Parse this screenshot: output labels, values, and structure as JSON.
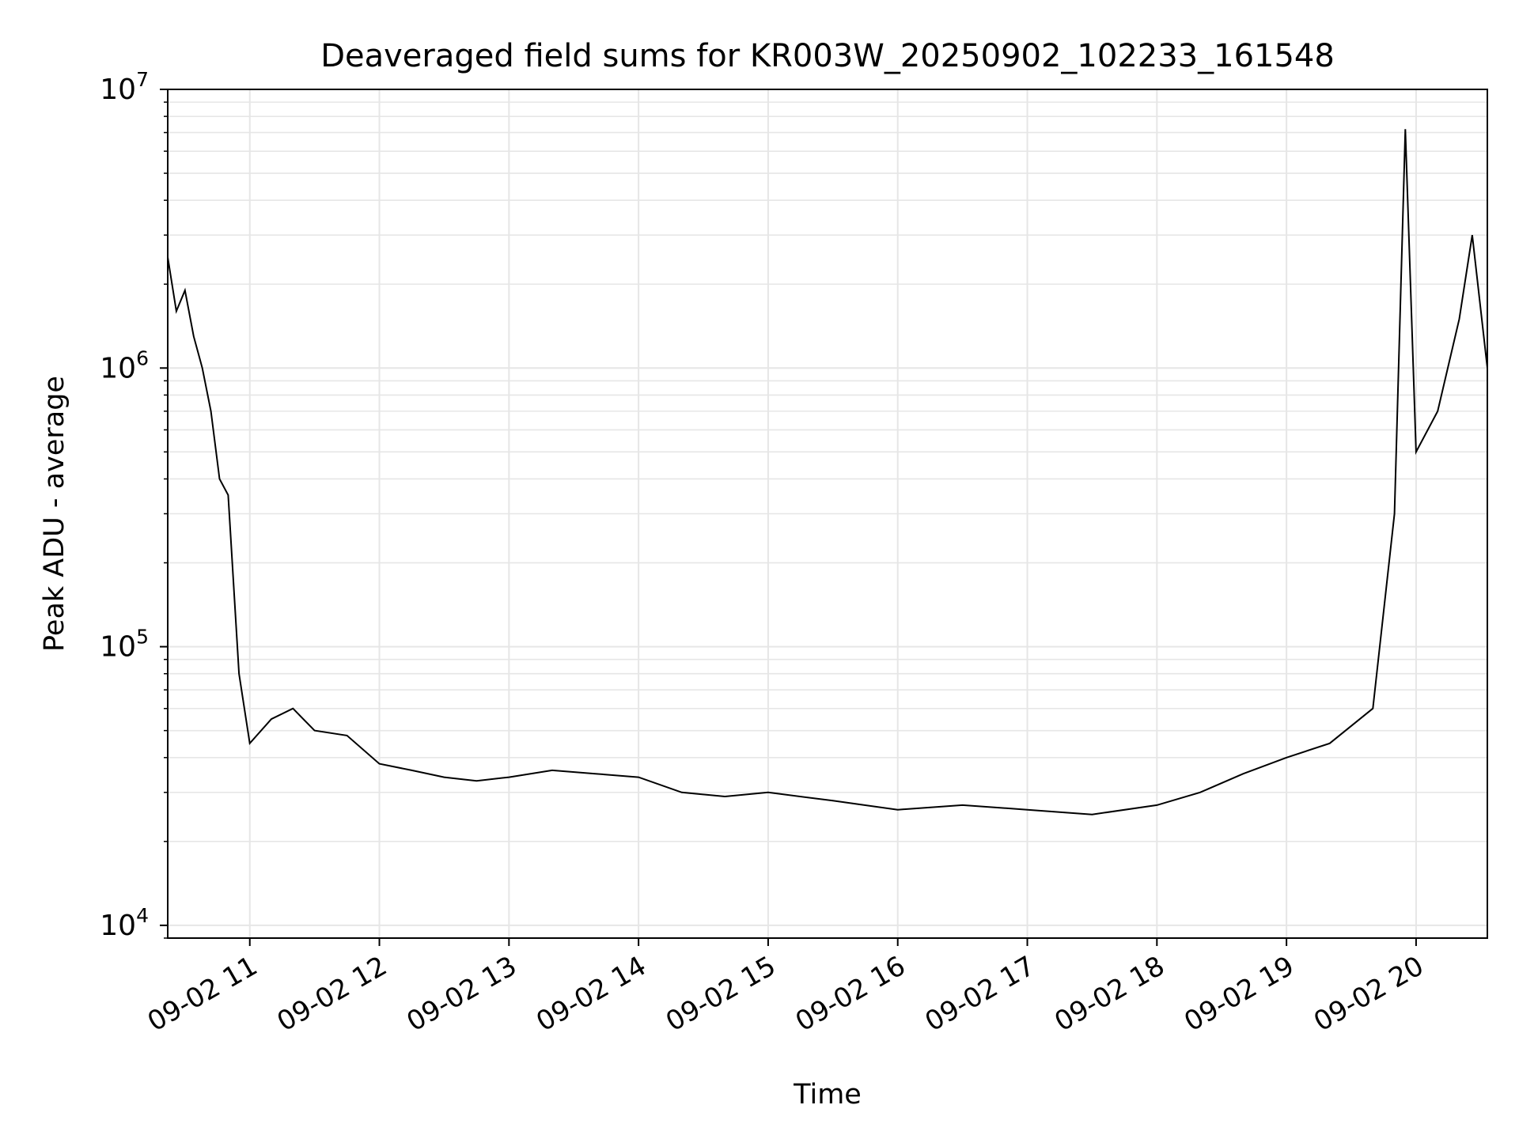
{
  "chart_data": {
    "type": "line",
    "title": "Deaveraged field sums for KR003W_20250902_102233_161548",
    "xlabel": "Time",
    "ylabel": "Peak ADU - average",
    "yscale": "log",
    "ylim": [
      9000,
      10000000
    ],
    "xlim": [
      "2025-09-02 10:22",
      "2025-09-02 20:33"
    ],
    "grid": true,
    "line_color": "#000000",
    "grid_color": "#e6e6e6",
    "x_ticks": [
      {
        "label": "09-02 11",
        "value": "2025-09-02 11:00"
      },
      {
        "label": "09-02 12",
        "value": "2025-09-02 12:00"
      },
      {
        "label": "09-02 13",
        "value": "2025-09-02 13:00"
      },
      {
        "label": "09-02 14",
        "value": "2025-09-02 14:00"
      },
      {
        "label": "09-02 15",
        "value": "2025-09-02 15:00"
      },
      {
        "label": "09-02 16",
        "value": "2025-09-02 16:00"
      },
      {
        "label": "09-02 17",
        "value": "2025-09-02 17:00"
      },
      {
        "label": "09-02 18",
        "value": "2025-09-02 18:00"
      },
      {
        "label": "09-02 19",
        "value": "2025-09-02 19:00"
      },
      {
        "label": "09-02 20",
        "value": "2025-09-02 20:00"
      }
    ],
    "y_ticks": [
      {
        "base": "10",
        "exp": "4",
        "value": 10000
      },
      {
        "base": "10",
        "exp": "5",
        "value": 100000
      },
      {
        "base": "10",
        "exp": "6",
        "value": 1000000
      },
      {
        "base": "10",
        "exp": "7",
        "value": 10000000
      }
    ],
    "series": [
      {
        "points": [
          [
            "2025-09-02 10:22",
            2500000
          ],
          [
            "2025-09-02 10:26",
            1600000
          ],
          [
            "2025-09-02 10:30",
            1900000
          ],
          [
            "2025-09-02 10:34",
            1300000
          ],
          [
            "2025-09-02 10:38",
            1000000
          ],
          [
            "2025-09-02 10:42",
            700000
          ],
          [
            "2025-09-02 10:46",
            400000
          ],
          [
            "2025-09-02 10:50",
            350000
          ],
          [
            "2025-09-02 10:55",
            80000
          ],
          [
            "2025-09-02 11:00",
            45000
          ],
          [
            "2025-09-02 11:10",
            55000
          ],
          [
            "2025-09-02 11:20",
            60000
          ],
          [
            "2025-09-02 11:30",
            50000
          ],
          [
            "2025-09-02 11:45",
            48000
          ],
          [
            "2025-09-02 12:00",
            38000
          ],
          [
            "2025-09-02 12:15",
            36000
          ],
          [
            "2025-09-02 12:30",
            34000
          ],
          [
            "2025-09-02 12:45",
            33000
          ],
          [
            "2025-09-02 13:00",
            34000
          ],
          [
            "2025-09-02 13:20",
            36000
          ],
          [
            "2025-09-02 13:40",
            35000
          ],
          [
            "2025-09-02 14:00",
            34000
          ],
          [
            "2025-09-02 14:20",
            30000
          ],
          [
            "2025-09-02 14:40",
            29000
          ],
          [
            "2025-09-02 15:00",
            30000
          ],
          [
            "2025-09-02 15:30",
            28000
          ],
          [
            "2025-09-02 16:00",
            26000
          ],
          [
            "2025-09-02 16:30",
            27000
          ],
          [
            "2025-09-02 17:00",
            26000
          ],
          [
            "2025-09-02 17:30",
            25000
          ],
          [
            "2025-09-02 18:00",
            27000
          ],
          [
            "2025-09-02 18:20",
            30000
          ],
          [
            "2025-09-02 18:40",
            35000
          ],
          [
            "2025-09-02 19:00",
            40000
          ],
          [
            "2025-09-02 19:20",
            45000
          ],
          [
            "2025-09-02 19:40",
            60000
          ],
          [
            "2025-09-02 19:50",
            300000
          ],
          [
            "2025-09-02 19:55",
            7200000
          ],
          [
            "2025-09-02 20:00",
            500000
          ],
          [
            "2025-09-02 20:10",
            700000
          ],
          [
            "2025-09-02 20:20",
            1500000
          ],
          [
            "2025-09-02 20:26",
            3000000
          ],
          [
            "2025-09-02 20:33",
            1000000
          ]
        ]
      }
    ]
  }
}
